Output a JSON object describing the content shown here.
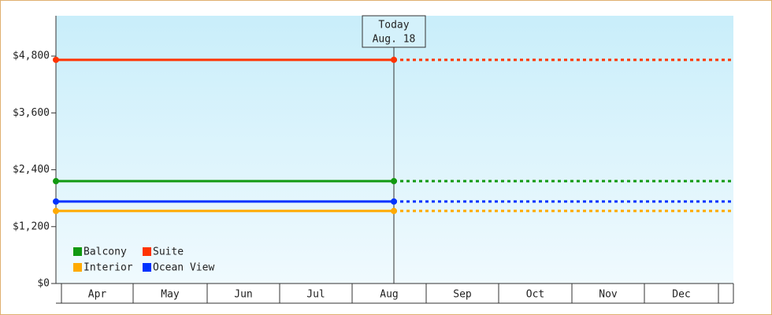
{
  "chart_data": {
    "type": "line",
    "categories": [
      "Apr",
      "May",
      "Jun",
      "Jul",
      "Aug",
      "Sep",
      "Oct",
      "Nov",
      "Dec"
    ],
    "series": [
      {
        "name": "Balcony",
        "color": "#119911",
        "value": 2160
      },
      {
        "name": "Suite",
        "color": "#ff3300",
        "value": 4720
      },
      {
        "name": "Interior",
        "color": "#ffaa00",
        "value": 1530
      },
      {
        "name": "Ocean View",
        "color": "#0033ff",
        "value": 1730
      }
    ],
    "annotation": [
      "Today",
      "Aug. 18"
    ],
    "ylim": [
      0,
      5650
    ],
    "yticks": [
      {
        "value": 0,
        "label": "$0"
      },
      {
        "value": 1200,
        "label": "$1,200"
      },
      {
        "value": 2400,
        "label": "$2,400"
      },
      {
        "value": 3600,
        "label": "$3,600"
      },
      {
        "value": 4800,
        "label": "$4,800"
      }
    ],
    "legend": "lower left"
  }
}
